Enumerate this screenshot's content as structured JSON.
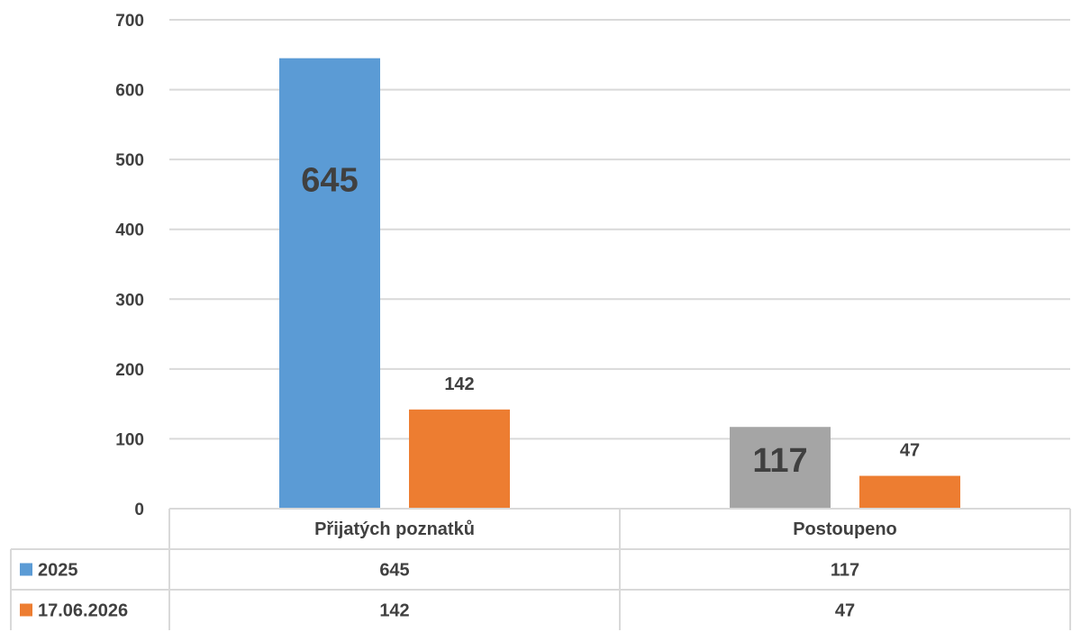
{
  "chart_data": {
    "type": "bar",
    "categories": [
      "Přijatých poznatků",
      "Postoupeno"
    ],
    "series": [
      {
        "name": "2025",
        "values": [
          645,
          117
        ],
        "colors": [
          "#5B9BD5",
          "#A5A5A5"
        ],
        "legend_color": "#5B9BD5",
        "label_style": "large-inside"
      },
      {
        "name": "17.06.2026",
        "values": [
          142,
          47
        ],
        "colors": [
          "#ED7D31",
          "#ED7D31"
        ],
        "legend_color": "#ED7D31",
        "label_style": "small-above"
      }
    ],
    "ylim": [
      0,
      700
    ],
    "yticks": [
      0,
      100,
      200,
      300,
      400,
      500,
      600,
      700
    ],
    "grid": true,
    "data_table": true,
    "title": "",
    "xlabel": "",
    "ylabel": ""
  }
}
